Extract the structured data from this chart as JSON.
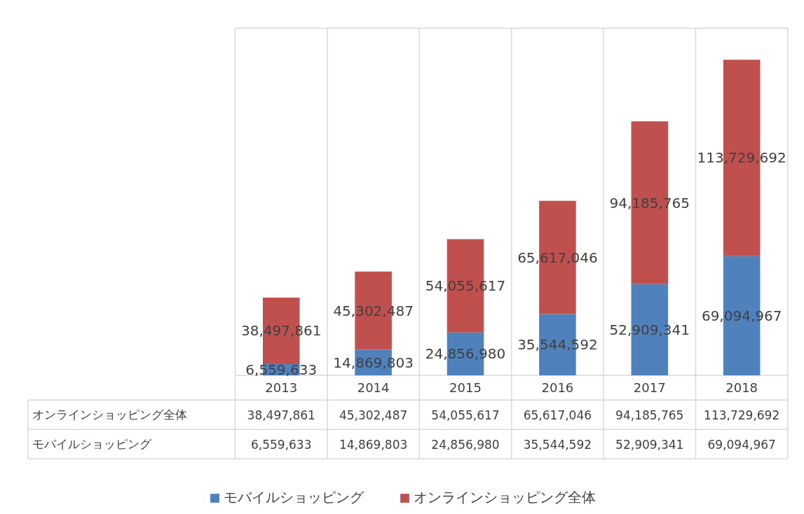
{
  "chart_data": {
    "type": "bar",
    "stacked": true,
    "categories": [
      "2013",
      "2014",
      "2015",
      "2016",
      "2017",
      "2018"
    ],
    "series": [
      {
        "name": "モバイルショッピング",
        "color": "#4f81bd",
        "values": [
          6559633,
          14869803,
          24856980,
          35544592,
          52909341,
          69094967
        ],
        "value_labels": [
          "6,559,633",
          "14,869,803",
          "24,856,980",
          "35,544,592",
          "52,909,341",
          "69,094,967"
        ]
      },
      {
        "name": "オンラインショッピング全体",
        "color": "#c0504d",
        "values": [
          38497861,
          45302487,
          54055617,
          65617046,
          94185765,
          113729692
        ],
        "value_labels": [
          "38,497,861",
          "45,302,487",
          "54,055,617",
          "65,617,046",
          "94,185,765",
          "113,729,692"
        ]
      }
    ],
    "tick_labels": "x",
    "legend": "bottom"
  }
}
